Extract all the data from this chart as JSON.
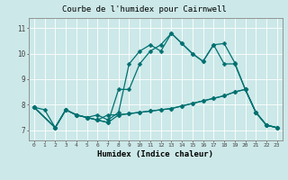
{
  "title": "Courbe de l'humidex pour Cairnwell",
  "xlabel": "Humidex (Indice chaleur)",
  "bg_color": "#cce8e8",
  "grid_color": "#ffffff",
  "line_color": "#007070",
  "xlim": [
    -0.5,
    23.5
  ],
  "ylim": [
    6.6,
    11.4
  ],
  "yticks": [
    7,
    8,
    9,
    10,
    11
  ],
  "xticks": [
    0,
    1,
    2,
    3,
    4,
    5,
    6,
    7,
    8,
    9,
    10,
    11,
    12,
    13,
    14,
    15,
    16,
    17,
    18,
    19,
    20,
    21,
    22,
    23
  ],
  "line1_x": [
    0,
    1,
    2,
    3,
    4,
    5,
    6,
    7,
    8,
    9,
    10,
    11,
    12,
    13,
    14,
    15,
    16,
    17,
    18,
    19,
    20,
    21,
    22,
    23
  ],
  "line1_y": [
    7.9,
    7.8,
    7.1,
    7.8,
    7.6,
    7.5,
    7.6,
    7.4,
    7.7,
    9.6,
    10.1,
    10.35,
    10.1,
    10.8,
    10.4,
    10.0,
    9.7,
    10.35,
    10.4,
    9.65,
    8.6,
    7.7,
    7.2,
    7.1
  ],
  "line2_x": [
    0,
    2,
    3,
    4,
    5,
    6,
    7,
    8,
    9,
    10,
    11,
    12,
    13,
    14,
    15,
    16,
    17,
    18,
    19,
    20,
    21,
    22,
    23
  ],
  "line2_y": [
    7.9,
    7.1,
    7.8,
    7.6,
    7.5,
    7.4,
    7.6,
    7.6,
    7.65,
    7.7,
    7.75,
    7.8,
    7.85,
    7.95,
    8.05,
    8.15,
    8.25,
    8.35,
    8.5,
    8.6,
    7.7,
    7.2,
    7.1
  ],
  "line3_x": [
    0,
    2,
    3,
    4,
    5,
    6,
    7,
    8,
    9,
    10,
    11,
    12,
    13,
    14,
    15,
    16,
    17,
    18,
    19,
    20,
    21,
    22,
    23
  ],
  "line3_y": [
    7.9,
    7.1,
    7.8,
    7.6,
    7.5,
    7.4,
    7.3,
    8.6,
    8.6,
    9.6,
    10.1,
    10.35,
    10.8,
    10.4,
    10.0,
    9.7,
    10.35,
    9.6,
    9.6,
    8.6,
    7.7,
    7.2,
    7.1
  ],
  "line4_x": [
    0,
    2,
    3,
    4,
    5,
    6,
    7,
    8,
    9,
    10,
    11,
    12,
    13,
    14,
    15,
    16,
    17,
    18,
    19,
    20,
    21,
    22,
    23
  ],
  "line4_y": [
    7.9,
    7.1,
    7.8,
    7.6,
    7.5,
    7.4,
    7.3,
    7.6,
    7.65,
    7.7,
    7.75,
    7.8,
    7.85,
    7.95,
    8.05,
    8.15,
    8.25,
    8.35,
    8.5,
    8.6,
    7.7,
    7.2,
    7.1
  ]
}
